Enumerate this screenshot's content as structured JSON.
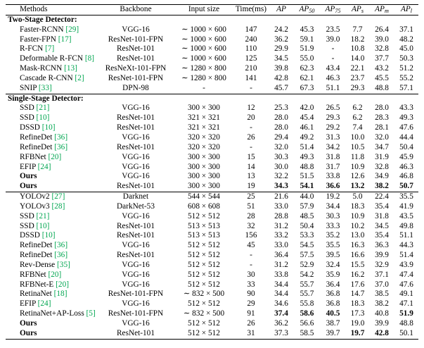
{
  "colors": {
    "citation_green": "#00a650"
  },
  "table": {
    "columns": [
      {
        "label": "Methods",
        "italic": false
      },
      {
        "label": "Backbone",
        "italic": false
      },
      {
        "label": "Input size",
        "italic": false
      },
      {
        "label": "Time(ms)",
        "italic": false
      },
      {
        "label": "AP",
        "sub": "",
        "italic": true
      },
      {
        "label": "AP",
        "sub": "50",
        "italic": true
      },
      {
        "label": "AP",
        "sub": "75",
        "italic": true
      },
      {
        "label": "AP",
        "sub": "s",
        "italic": true
      },
      {
        "label": "AP",
        "sub": "m",
        "italic": true
      },
      {
        "label": "AP",
        "sub": "l",
        "italic": true
      }
    ],
    "sections": [
      {
        "title": "Two-Stage Detector:",
        "groups": [
          {
            "rows": [
              {
                "method": "Faster-RCNN",
                "cite": "[29]",
                "backbone": "VGG-16",
                "input": "∼ 1000 × 600",
                "time": "147",
                "values": [
                  "24.2",
                  "45.3",
                  "23.5",
                  "7.7",
                  "26.4",
                  "37.1"
                ]
              },
              {
                "method": "Faster-FPN",
                "cite": "[17]",
                "backbone": "ResNet-101-FPN",
                "input": "∼ 1000 × 600",
                "time": "240",
                "values": [
                  "36.2",
                  "59.1",
                  "39.0",
                  "18.2",
                  "39.0",
                  "48.2"
                ]
              },
              {
                "method": "R-FCN",
                "cite": "[7]",
                "backbone": "ResNet-101",
                "input": "∼ 1000 × 600",
                "time": "110",
                "values": [
                  "29.9",
                  "51.9",
                  "-",
                  "10.8",
                  "32.8",
                  "45.0"
                ]
              },
              {
                "method": "Deformable R-FCN",
                "cite": "[8]",
                "backbone": "ResNet-101",
                "input": "∼ 1000 × 600",
                "time": "125",
                "values": [
                  "34.5",
                  "55.0",
                  "-",
                  "14.0",
                  "37.7",
                  "50.3"
                ]
              },
              {
                "method": "Mask-RCNN",
                "cite": "[13]",
                "backbone": "ResNeXt-101-FPN",
                "input": "∼ 1280 × 800",
                "time": "210",
                "values": [
                  "39.8",
                  "62.3",
                  "43.4",
                  "22.1",
                  "43.2",
                  "51.2"
                ]
              },
              {
                "method": "Cascade R-CNN",
                "cite": "[2]",
                "backbone": "ResNet-101-FPN",
                "input": "∼ 1280 × 800",
                "time": "141",
                "values": [
                  "42.8",
                  "62.1",
                  "46.3",
                  "23.7",
                  "45.5",
                  "55.2"
                ]
              },
              {
                "method": "SNIP",
                "cite": "[33]",
                "backbone": "DPN-98",
                "input": "-",
                "time": "-",
                "values": [
                  "45.7",
                  "67.3",
                  "51.1",
                  "29.3",
                  "48.8",
                  "57.1"
                ]
              }
            ]
          }
        ]
      },
      {
        "title": "Single-Stage Detector:",
        "groups": [
          {
            "rows": [
              {
                "method": "SSD",
                "cite": "[21]",
                "backbone": "VGG-16",
                "input": "300 × 300",
                "time": "12",
                "values": [
                  "25.3",
                  "42.0",
                  "26.5",
                  "6.2",
                  "28.0",
                  "43.3"
                ]
              },
              {
                "method": "SSD",
                "cite": "[10]",
                "backbone": "ResNet-101",
                "input": "321 × 321",
                "time": "20",
                "values": [
                  "28.0",
                  "45.4",
                  "29.3",
                  "6.2",
                  "28.3",
                  "49.3"
                ]
              },
              {
                "method": "DSSD",
                "cite": "[10]",
                "backbone": "ResNet-101",
                "input": "321 × 321",
                "time": "-",
                "values": [
                  "28.0",
                  "46.1",
                  "29.2",
                  "7.4",
                  "28.1",
                  "47.6"
                ]
              },
              {
                "method": "RefineDet",
                "cite": "[36]",
                "backbone": "VGG-16",
                "input": "320 × 320",
                "time": "26",
                "values": [
                  "29.4",
                  "49.2",
                  "31.3",
                  "10.0",
                  "32.0",
                  "44.4"
                ]
              },
              {
                "method": "RefineDet",
                "cite": "[36]",
                "backbone": "ResNet-101",
                "input": "320 × 320",
                "time": "-",
                "values": [
                  "32.0",
                  "51.4",
                  "34.2",
                  "10.5",
                  "34.7",
                  "50.4"
                ]
              },
              {
                "method": "RFBNet",
                "cite": "[20]",
                "backbone": "VGG-16",
                "input": "300 × 300",
                "time": "15",
                "values": [
                  "30.3",
                  "49.3",
                  "31.8",
                  "11.8",
                  "31.9",
                  "45.9"
                ]
              },
              {
                "method": "EFIP",
                "cite": "[24]",
                "backbone": "VGG-16",
                "input": "300 × 300",
                "time": "14",
                "values": [
                  "30.0",
                  "48.8",
                  "31.7",
                  "10.9",
                  "32.8",
                  "46.3"
                ]
              },
              {
                "method": "Ours",
                "bold_method": true,
                "backbone": "VGG-16",
                "input": "300 × 300",
                "time": "13",
                "values": [
                  "32.2",
                  "51.5",
                  "33.8",
                  "12.6",
                  "34.9",
                  "46.8"
                ]
              },
              {
                "method": "Ours",
                "bold_method": true,
                "bold_all": true,
                "backbone": "ResNet-101",
                "input": "300 × 300",
                "time": "19",
                "values": [
                  "34.3",
                  "54.1",
                  "36.6",
                  "13.2",
                  "38.2",
                  "50.7"
                ]
              }
            ]
          },
          {
            "rows": [
              {
                "method": "YOLOv2",
                "cite": "[27]",
                "backbone": "Darknet",
                "input": "544 × 544",
                "time": "25",
                "values": [
                  "21.6",
                  "44.0",
                  "19.2",
                  "5.0",
                  "22.4",
                  "35.5"
                ]
              },
              {
                "method": "YOLOv3",
                "cite": "[28]",
                "backbone": "DarkNet-53",
                "input": "608 × 608",
                "time": "51",
                "values": [
                  "33.0",
                  "57.9",
                  "34.4",
                  "18.3",
                  "35.4",
                  "41.9"
                ]
              },
              {
                "method": "SSD",
                "cite": "[21]",
                "backbone": "VGG-16",
                "input": "512 × 512",
                "time": "28",
                "values": [
                  "28.8",
                  "48.5",
                  "30.3",
                  "10.9",
                  "31.8",
                  "43.5"
                ]
              },
              {
                "method": "SSD",
                "cite": "[10]",
                "backbone": "ResNet-101",
                "input": "513 × 513",
                "time": "32",
                "values": [
                  "31.2",
                  "50.4",
                  "33.3",
                  "10.2",
                  "34.5",
                  "49.8"
                ]
              },
              {
                "method": "DSSD",
                "cite": "[10]",
                "backbone": "ResNet-101",
                "input": "513 × 513",
                "time": "156",
                "values": [
                  "33.2",
                  "53.3",
                  "35.2",
                  "13.0",
                  "35.4",
                  "51.1"
                ]
              },
              {
                "method": "RefineDet",
                "cite": "[36]",
                "backbone": "VGG-16",
                "input": "512 × 512",
                "time": "45",
                "values": [
                  "33.0",
                  "54.5",
                  "35.5",
                  "16.3",
                  "36.3",
                  "44.3"
                ]
              },
              {
                "method": "RefineDet",
                "cite": "[36]",
                "backbone": "ResNet-101",
                "input": "512 × 512",
                "time": "-",
                "values": [
                  "36.4",
                  "57.5",
                  "39.5",
                  "16.6",
                  "39.9",
                  "51.4"
                ]
              },
              {
                "method": "Rev-Dense",
                "cite": "[35]",
                "backbone": "VGG-16",
                "input": "512 × 512",
                "time": "-",
                "values": [
                  "31.2",
                  "52.9",
                  "32.4",
                  "15.5",
                  "32.9",
                  "43.9"
                ]
              },
              {
                "method": "RFBNet",
                "cite": "[20]",
                "backbone": "VGG-16",
                "input": "512 × 512",
                "time": "30",
                "values": [
                  "33.8",
                  "54.2",
                  "35.9",
                  "16.2",
                  "37.1",
                  "47.4"
                ]
              },
              {
                "method": "RFBNet-E",
                "cite": "[20]",
                "backbone": "VGG-16",
                "input": "512 × 512",
                "time": "33",
                "values": [
                  "34.4",
                  "55.7",
                  "36.4",
                  "17.6",
                  "37.0",
                  "47.6"
                ]
              },
              {
                "method": "RetinaNet",
                "cite": "[18]",
                "backbone": "ResNet-101-FPN",
                "input": "∼ 832 × 500",
                "time": "90",
                "values": [
                  "34.4",
                  "55.7",
                  "36.8",
                  "14.7",
                  "38.5",
                  "49.1"
                ]
              },
              {
                "method": "EFIP",
                "cite": "[24]",
                "backbone": "VGG-16",
                "input": "512 × 512",
                "time": "29",
                "values": [
                  "34.6",
                  "55.8",
                  "36.8",
                  "18.3",
                  "38.2",
                  "47.1"
                ]
              },
              {
                "method": "RetinaNet+AP-Loss",
                "cite": "[5]",
                "backbone": "ResNet-101-FPN",
                "input": "∼ 832 × 500",
                "time": "91",
                "values": [
                  "37.4",
                  "58.6",
                  "40.5",
                  "17.3",
                  "40.8",
                  "51.9"
                ],
                "bold_values": [
                  true,
                  true,
                  true,
                  false,
                  false,
                  true
                ]
              },
              {
                "method": "Ours",
                "bold_method": true,
                "backbone": "VGG-16",
                "input": "512 × 512",
                "time": "26",
                "values": [
                  "36.2",
                  "56.6",
                  "38.7",
                  "19.0",
                  "39.9",
                  "48.8"
                ]
              },
              {
                "method": "Ours",
                "bold_method": true,
                "backbone": "ResNet-101",
                "input": "512 × 512",
                "time": "31",
                "values": [
                  "37.3",
                  "58.5",
                  "39.7",
                  "19.7",
                  "42.8",
                  "50.1"
                ],
                "bold_values": [
                  false,
                  false,
                  false,
                  true,
                  true,
                  false
                ]
              }
            ]
          }
        ]
      }
    ]
  }
}
